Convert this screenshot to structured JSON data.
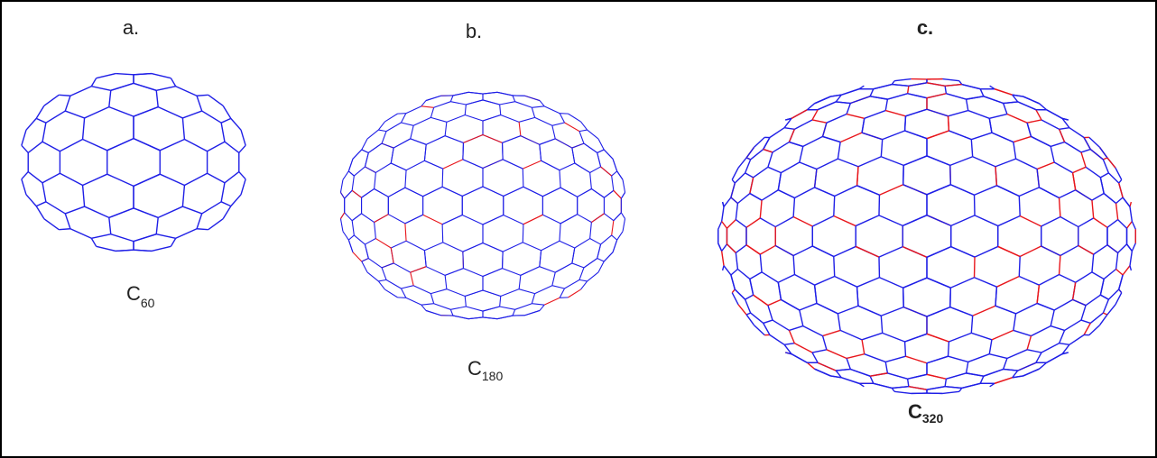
{
  "panels": [
    {
      "label": "a.",
      "formula": {
        "base": "C",
        "sub": "60"
      }
    },
    {
      "label": "b.",
      "formula": {
        "base": "C",
        "sub": "180"
      }
    },
    {
      "label": "c.",
      "formula": {
        "base": "C",
        "sub": "320"
      }
    }
  ]
}
